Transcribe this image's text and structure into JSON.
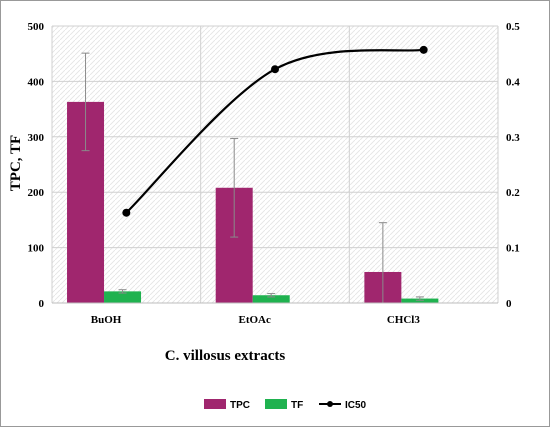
{
  "chart_data": {
    "type": "bar",
    "categories": [
      "BuOH",
      "EtOAc",
      "CHCl3"
    ],
    "xlabel": "C. villosus extracts",
    "ylabel": "TPC, TF",
    "ylim": [
      0,
      500
    ],
    "y2lim": [
      0,
      0.5
    ],
    "yticks": [
      0,
      100,
      200,
      300,
      400,
      500
    ],
    "y2ticks": [
      0,
      0.1,
      0.2,
      0.3,
      0.4,
      0.5
    ],
    "y2tick_labels": [
      "0",
      "0.1",
      "0.2",
      "0.3",
      "0.4",
      "0.5"
    ],
    "grid": true,
    "legend_position": "bottom",
    "series": [
      {
        "name": "TPC",
        "kind": "bar",
        "axis": "left",
        "color": "#A0266E",
        "values": [
          363,
          208,
          56
        ],
        "errors": [
          88,
          89,
          89
        ]
      },
      {
        "name": "TF",
        "kind": "bar",
        "axis": "left",
        "color": "#1FB24F",
        "values": [
          21,
          14,
          8
        ],
        "errors": [
          3,
          3,
          3
        ]
      },
      {
        "name": "IC50",
        "kind": "line",
        "axis": "right",
        "color": "#000000",
        "values": [
          0.163,
          0.422,
          0.457
        ],
        "smooth": true
      }
    ]
  }
}
